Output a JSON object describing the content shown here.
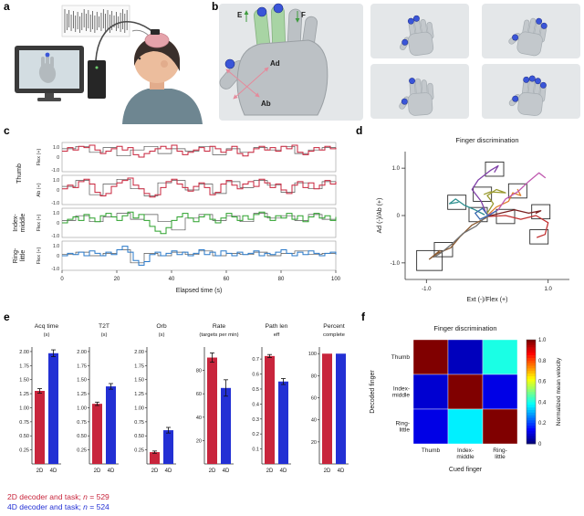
{
  "panel_labels": {
    "a": "a",
    "b": "b",
    "c": "c",
    "d": "d",
    "e": "e",
    "f": "f"
  },
  "colors": {
    "red": "#c8253c",
    "blue": "#2330d4",
    "green": "#2ba12b",
    "teal_blue": "#2878c8",
    "annot_green": "#3f9b3f",
    "annot_pink": "#e58a9b",
    "cue_dot_blue": "#3a55d8"
  },
  "panel_b": {
    "markers": {
      "ext": "E",
      "flex": "F",
      "ad": "Ad",
      "ab": "Ab"
    },
    "mini_hands": [
      [
        "thumb",
        "index",
        "middle"
      ],
      [
        "thumb",
        "ring",
        "little"
      ],
      [
        "thumb",
        "index"
      ],
      [
        "thumb",
        "index",
        "middle",
        "ring",
        "little"
      ]
    ]
  },
  "chart_data": {
    "panel_c": {
      "type": "line",
      "xlabel": "Elapsed time (s)",
      "xticks": [
        0,
        20,
        40,
        60,
        80,
        100
      ],
      "ytick_labels": [
        "1.0",
        "0",
        "-1.0"
      ],
      "groups": [
        {
          "lines": [
            "Thumb"
          ],
          "rows": [
            0,
            1
          ]
        },
        {
          "lines": [
            "Index-",
            "middle"
          ],
          "rows": [
            2,
            2
          ]
        },
        {
          "lines": [
            "Ring-",
            "little"
          ],
          "rows": [
            3,
            3
          ]
        }
      ],
      "rows": [
        {
          "axis": "Flex (+)",
          "color": "red",
          "target": [
            0.7,
            0.9,
            0.4,
            0.8,
            0.1,
            0.6,
            0.9,
            0.3,
            0.7,
            0.5,
            0.9,
            0.2,
            0.7,
            0.4,
            0.8,
            0.6,
            0.9,
            0.3,
            0.6,
            0.8
          ],
          "trace": [
            0.5,
            0.8,
            0.6,
            0.9,
            0.8,
            1.0,
            0.6,
            0.3,
            0.5,
            0.7,
            0.9,
            0.6,
            0.8,
            0.2,
            0.0,
            0.3,
            0.5,
            0.7,
            0.9,
            0.7,
            1.0,
            0.5,
            0.2,
            0.4,
            0.6,
            0.8,
            0.5,
            0.9,
            0.7,
            0.4,
            0.6,
            0.9,
            0.3,
            0.1,
            0.4,
            0.7,
            0.9,
            0.6,
            0.8,
            0.5,
            0.9,
            0.7,
            1.0,
            0.4,
            0.2,
            0.5,
            0.8,
            0.6,
            0.9,
            0.7,
            0.8
          ]
        },
        {
          "axis": "Ab (+)",
          "color": "red",
          "target": [
            0.3,
            0.8,
            -0.4,
            0.5,
            0.9,
            0.1,
            -0.5,
            0.6,
            0.8,
            0.0,
            0.5,
            -0.3,
            0.7,
            0.2,
            0.8,
            0.4,
            -0.2,
            0.6,
            0.1,
            0.7
          ],
          "trace": [
            0.1,
            0.4,
            0.2,
            0.7,
            0.9,
            0.5,
            -0.2,
            -0.5,
            -0.3,
            0.3,
            0.6,
            0.8,
            1.0,
            0.4,
            0.1,
            -0.3,
            -0.6,
            -0.4,
            0.2,
            0.7,
            0.9,
            0.5,
            0.2,
            -0.1,
            0.3,
            0.6,
            0.2,
            -0.4,
            -0.2,
            0.5,
            0.8,
            0.4,
            0.1,
            0.5,
            0.7,
            0.3,
            0.9,
            0.6,
            0.2,
            0.5,
            0.0,
            -0.3,
            0.4,
            0.7,
            0.2,
            0.6,
            0.1,
            0.4,
            0.8,
            0.5,
            0.7
          ]
        },
        {
          "axis": "Flex (+)",
          "color": "green",
          "target": [
            0.2,
            0.6,
            0.1,
            0.5,
            0.8,
            0.3,
            0.7,
            0.1,
            -0.6,
            0.4,
            0.7,
            0.2,
            0.6,
            0.1,
            0.8,
            0.4,
            0.6,
            0.2,
            0.7,
            0.3
          ],
          "trace": [
            0.0,
            0.3,
            0.5,
            0.2,
            0.7,
            0.4,
            0.1,
            0.6,
            0.8,
            0.5,
            0.2,
            0.6,
            0.9,
            0.4,
            0.7,
            0.2,
            -0.3,
            -0.7,
            -0.9,
            -0.4,
            0.2,
            0.5,
            0.8,
            0.4,
            0.1,
            0.5,
            0.7,
            0.3,
            0.0,
            0.4,
            0.8,
            0.5,
            0.2,
            0.6,
            0.3,
            0.7,
            0.9,
            0.5,
            0.2,
            0.6,
            0.4,
            0.8,
            0.3,
            0.6,
            0.1,
            0.5,
            0.8,
            0.4,
            0.6,
            0.2,
            0.5
          ]
        },
        {
          "axis": "Flex (+)",
          "color": "teal_blue",
          "target": [
            0.1,
            0.3,
            0.0,
            0.2,
            0.5,
            -0.6,
            0.2,
            0.0,
            0.3,
            0.1,
            0.4,
            0.0,
            0.2,
            0.1,
            0.3,
            0.0,
            0.2,
            0.4,
            0.1,
            0.2
          ],
          "trace": [
            0.0,
            0.2,
            0.1,
            0.3,
            0.0,
            0.4,
            0.2,
            0.0,
            0.3,
            0.1,
            0.5,
            0.8,
            0.3,
            -0.4,
            -0.8,
            -0.5,
            0.1,
            0.3,
            0.0,
            0.2,
            0.4,
            0.1,
            0.3,
            0.0,
            0.2,
            0.5,
            0.1,
            0.3,
            0.0,
            0.4,
            0.2,
            0.0,
            0.3,
            0.1,
            0.2,
            0.4,
            0.0,
            0.2,
            0.1,
            0.3,
            0.5,
            0.2,
            0.0,
            0.3,
            0.1,
            0.4,
            0.2,
            0.0,
            0.2,
            0.3,
            0.1
          ]
        }
      ]
    },
    "panel_d": {
      "type": "trajectory",
      "title": "Finger discrimination",
      "xlabel": "Ext (-)/Flex (+)",
      "ylabel": "Ad (-)/Ab (+)",
      "xlim": [
        -1.35,
        1.35
      ],
      "ylim": [
        -1.35,
        1.35
      ],
      "yticks": [
        {
          "v": 1,
          "label": "1.0"
        },
        {
          "v": 0,
          "label": "0"
        },
        {
          "v": -1,
          "label": "-1.0"
        }
      ],
      "xticks": [
        {
          "v": -1,
          "label": "-1.0"
        },
        {
          "v": 1,
          "label": "1.0"
        }
      ],
      "targets": [
        [
          -0.95,
          -0.95,
          0.42
        ],
        [
          -0.72,
          -0.72,
          0.3
        ],
        [
          -0.5,
          0.28,
          0.3
        ],
        [
          0.12,
          0.98,
          0.3
        ],
        [
          0.5,
          0.52,
          0.3
        ],
        [
          0.88,
          0.08,
          0.3
        ],
        [
          0.3,
          -0.02,
          0.3
        ],
        [
          -0.08,
          0.45,
          0.3
        ],
        [
          0.85,
          -0.45,
          0.3
        ],
        [
          -0.15,
          0.02,
          0.3
        ]
      ],
      "trajectories": [
        {
          "color": "#8040a8",
          "points": [
            [
              -0.02,
              0.05
            ],
            [
              -0.1,
              0.3
            ],
            [
              -0.25,
              0.55
            ],
            [
              -0.15,
              0.75
            ],
            [
              0.05,
              0.95
            ],
            [
              0.18,
              1.05
            ],
            [
              0.12,
              0.92
            ]
          ]
        },
        {
          "color": "#e07f2e",
          "points": [
            [
              0.0,
              0.0
            ],
            [
              0.15,
              0.18
            ],
            [
              0.35,
              0.3
            ],
            [
              0.42,
              0.48
            ],
            [
              0.55,
              0.42
            ],
            [
              0.5,
              0.55
            ]
          ]
        },
        {
          "color": "#c23232",
          "points": [
            [
              0.02,
              -0.02
            ],
            [
              0.3,
              0.0
            ],
            [
              0.55,
              -0.08
            ],
            [
              0.8,
              0.0
            ],
            [
              1.0,
              -0.15
            ],
            [
              0.95,
              -0.4
            ],
            [
              0.82,
              -0.46
            ]
          ]
        },
        {
          "color": "#8a5a30",
          "points": [
            [
              -0.02,
              -0.05
            ],
            [
              -0.25,
              -0.2
            ],
            [
              -0.45,
              -0.45
            ],
            [
              -0.6,
              -0.68
            ],
            [
              -0.82,
              -0.8
            ],
            [
              -0.95,
              -0.92
            ],
            [
              -0.78,
              -0.74
            ]
          ]
        },
        {
          "color": "#2e8f8f",
          "points": [
            [
              -0.05,
              0.02
            ],
            [
              -0.2,
              0.12
            ],
            [
              -0.38,
              0.22
            ],
            [
              -0.52,
              0.35
            ],
            [
              -0.62,
              0.25
            ],
            [
              -0.48,
              0.28
            ]
          ]
        },
        {
          "color": "#9a9a30",
          "points": [
            [
              0.0,
              0.05
            ],
            [
              0.1,
              0.25
            ],
            [
              0.0,
              0.42
            ],
            [
              0.15,
              0.55
            ],
            [
              0.3,
              0.48
            ],
            [
              0.05,
              0.5
            ],
            [
              -0.05,
              0.45
            ]
          ]
        },
        {
          "color": "#c05ab0",
          "points": [
            [
              0.0,
              0.0
            ],
            [
              0.18,
              0.12
            ],
            [
              0.3,
              0.35
            ],
            [
              0.5,
              0.5
            ],
            [
              0.68,
              0.72
            ],
            [
              0.85,
              0.9
            ],
            [
              0.95,
              0.8
            ]
          ]
        },
        {
          "color": "#707070",
          "points": [
            [
              -0.02,
              -0.02
            ],
            [
              -0.18,
              -0.22
            ],
            [
              -0.4,
              -0.38
            ],
            [
              -0.58,
              -0.6
            ],
            [
              -0.75,
              -0.78
            ],
            [
              -0.88,
              -0.88
            ]
          ]
        },
        {
          "color": "#7a2020",
          "points": [
            [
              0.0,
              -0.02
            ],
            [
              0.22,
              0.05
            ],
            [
              0.45,
              0.12
            ],
            [
              0.68,
              0.05
            ],
            [
              0.88,
              0.1
            ],
            [
              0.8,
              0.05
            ]
          ]
        },
        {
          "color": "#3a6ab0",
          "points": [
            [
              0.0,
              0.02
            ],
            [
              -0.08,
              0.15
            ],
            [
              -0.2,
              0.05
            ],
            [
              -0.12,
              -0.08
            ],
            [
              0.05,
              0.02
            ],
            [
              0.15,
              0.1
            ]
          ]
        }
      ]
    },
    "panel_e": {
      "type": "bar",
      "categories": [
        "2D",
        "4D"
      ],
      "series_colors": [
        "red",
        "blue"
      ],
      "charts": [
        {
          "title": [
            "Acq time",
            "(s)"
          ],
          "ylim": [
            0,
            2.08
          ],
          "yticks": [
            0.25,
            0.5,
            0.75,
            1.0,
            1.25,
            1.5,
            1.75,
            2.0
          ],
          "ytick_labels": [
            "0.25",
            "0.50",
            "0.75",
            "1.00",
            "1.25",
            "1.50",
            "1.75",
            "2.00"
          ],
          "values": [
            1.3,
            1.97
          ],
          "errors": [
            0.04,
            0.06
          ]
        },
        {
          "title": [
            "T2T",
            "(s)"
          ],
          "ylim": [
            0,
            2.08
          ],
          "yticks": [
            0.25,
            0.5,
            0.75,
            1.0,
            1.25,
            1.5,
            1.75,
            2.0
          ],
          "ytick_labels": [
            "0.25",
            "0.50",
            "0.75",
            "1.00",
            "1.25",
            "1.50",
            "1.75",
            "2.00"
          ],
          "values": [
            1.07,
            1.38
          ],
          "errors": [
            0.03,
            0.05
          ]
        },
        {
          "title": [
            "Orb",
            "(s)"
          ],
          "ylim": [
            0,
            2.08
          ],
          "yticks": [
            0.25,
            0.5,
            0.75,
            1.0,
            1.25,
            1.5,
            1.75,
            2.0
          ],
          "ytick_labels": [
            "0.25",
            "0.50",
            "0.75",
            "1.00",
            "1.25",
            "1.50",
            "1.75",
            "2.00"
          ],
          "values": [
            0.21,
            0.6
          ],
          "errors": [
            0.02,
            0.05
          ]
        },
        {
          "title": [
            "Rate",
            "(targets per min)"
          ],
          "ylim": [
            0,
            100
          ],
          "yticks": [
            20,
            40,
            60,
            80
          ],
          "ytick_labels": [
            "20",
            "40",
            "60",
            "80"
          ],
          "values": [
            91,
            65
          ],
          "errors": [
            4,
            7
          ]
        },
        {
          "title": [
            "Path len",
            "eff"
          ],
          "ylim": [
            0,
            0.78
          ],
          "yticks": [
            0.1,
            0.2,
            0.3,
            0.4,
            0.5,
            0.6,
            0.7
          ],
          "ytick_labels": [
            "0.1",
            "0.2",
            "0.3",
            "0.4",
            "0.5",
            "0.6",
            "0.7"
          ],
          "values": [
            0.72,
            0.55
          ],
          "errors": [
            0.01,
            0.02
          ]
        },
        {
          "title": [
            "Percent",
            "complete"
          ],
          "ylim": [
            0,
            106
          ],
          "yticks": [
            20,
            40,
            60,
            80,
            100
          ],
          "ytick_labels": [
            "20",
            "40",
            "60",
            "80",
            "100"
          ],
          "values": [
            100,
            100
          ],
          "errors": [
            0,
            0
          ]
        }
      ],
      "legend": [
        {
          "text": "2D decoder and task; ",
          "n": "n",
          "rest": " = 529",
          "color": "red"
        },
        {
          "text": "4D decoder and task; ",
          "n": "n",
          "rest": " = 524",
          "color": "blue"
        }
      ]
    },
    "panel_f": {
      "type": "heatmap",
      "title": "Finger discrimination",
      "xlabel": "Cued finger",
      "ylabel": "Decoded finger",
      "row_labels": [
        [
          "Thumb"
        ],
        [
          "Index-",
          "middle"
        ],
        [
          "Ring-",
          "little"
        ]
      ],
      "col_labels": [
        [
          "Thumb"
        ],
        [
          "Index-",
          "middle"
        ],
        [
          "Ring-",
          "little"
        ]
      ],
      "values": [
        [
          1.0,
          0.06,
          0.4
        ],
        [
          0.08,
          1.0,
          0.1
        ],
        [
          0.1,
          0.36,
          1.0
        ]
      ],
      "colorbar": {
        "label": "Normalized mean velocity",
        "ticks": [
          {
            "v": 1,
            "label": "1.0"
          },
          {
            "v": 0.8,
            "label": "0.8"
          },
          {
            "v": 0.6,
            "label": "0.6"
          },
          {
            "v": 0.4,
            "label": "0.4"
          },
          {
            "v": 0.2,
            "label": "0.2"
          },
          {
            "v": 0,
            "label": "0"
          }
        ]
      }
    }
  }
}
